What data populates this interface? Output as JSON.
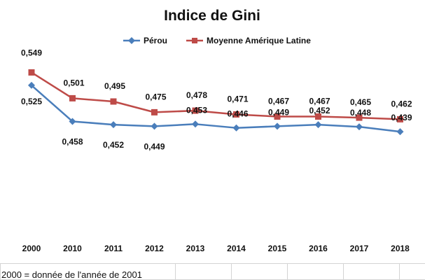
{
  "chart_data": {
    "type": "line",
    "title": "Indice de Gini",
    "categories": [
      "2000",
      "2010",
      "2011",
      "2012",
      "2013",
      "2014",
      "2015",
      "2016",
      "2017",
      "2018"
    ],
    "series": [
      {
        "name": "Pérou",
        "color": "#4a7ebb",
        "marker": "diamond",
        "values": [
          0.525,
          0.458,
          0.452,
          0.449,
          0.453,
          0.446,
          0.449,
          0.452,
          0.448,
          0.439
        ],
        "labels": [
          "0,525",
          "0,458",
          "0,452",
          "0,449",
          "0,453",
          "0,446",
          "0,449",
          "0,452",
          "0,448",
          "0,439"
        ]
      },
      {
        "name": "Moyenne Amérique Latine",
        "color": "#be4b48",
        "marker": "square",
        "values": [
          0.549,
          0.501,
          0.495,
          0.475,
          0.478,
          0.471,
          0.467,
          0.467,
          0.465,
          0.462
        ],
        "labels": [
          "0,549",
          "0,501",
          "0,495",
          "0,475",
          "0,478",
          "0,471",
          "0,467",
          "0,467",
          "0,465",
          "0,462"
        ]
      }
    ],
    "ylim": [
      0.3,
      0.56
    ],
    "grid": false,
    "legend_position": "top"
  },
  "footnote": "2000 = donnée de l'année de 2001"
}
